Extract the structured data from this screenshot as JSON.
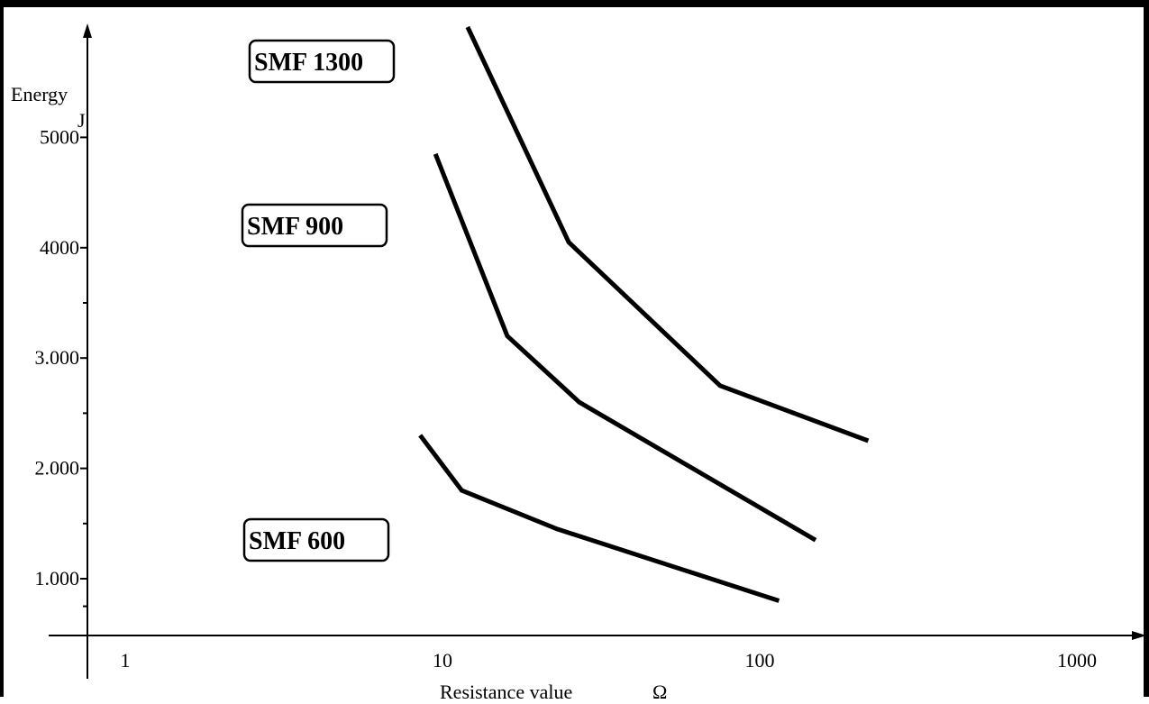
{
  "chart_data": {
    "type": "line",
    "title": "",
    "xlabel": "Resistance value",
    "xunit": "Ω",
    "ylabel": "Energy",
    "yunit": "J",
    "xscale": "log",
    "xlim": [
      0.9,
      1400
    ],
    "ylim": [
      500,
      5800
    ],
    "grid": false,
    "x_ticks": [
      "1",
      "10",
      "100",
      "1000"
    ],
    "y_ticks": [
      "1.000",
      "2.000",
      "3.000",
      "4000",
      "5000"
    ],
    "series": [
      {
        "name": "SMF 1300",
        "x": [
          12,
          25,
          75,
          220
        ],
        "y": [
          6000,
          4050,
          2750,
          2250
        ]
      },
      {
        "name": "SMF 900",
        "x": [
          9.5,
          16,
          27,
          150
        ],
        "y": [
          4850,
          3200,
          2600,
          1350
        ]
      },
      {
        "name": "SMF 600",
        "x": [
          8.5,
          11.5,
          23,
          115
        ],
        "y": [
          2300,
          1800,
          1450,
          800
        ]
      }
    ]
  }
}
